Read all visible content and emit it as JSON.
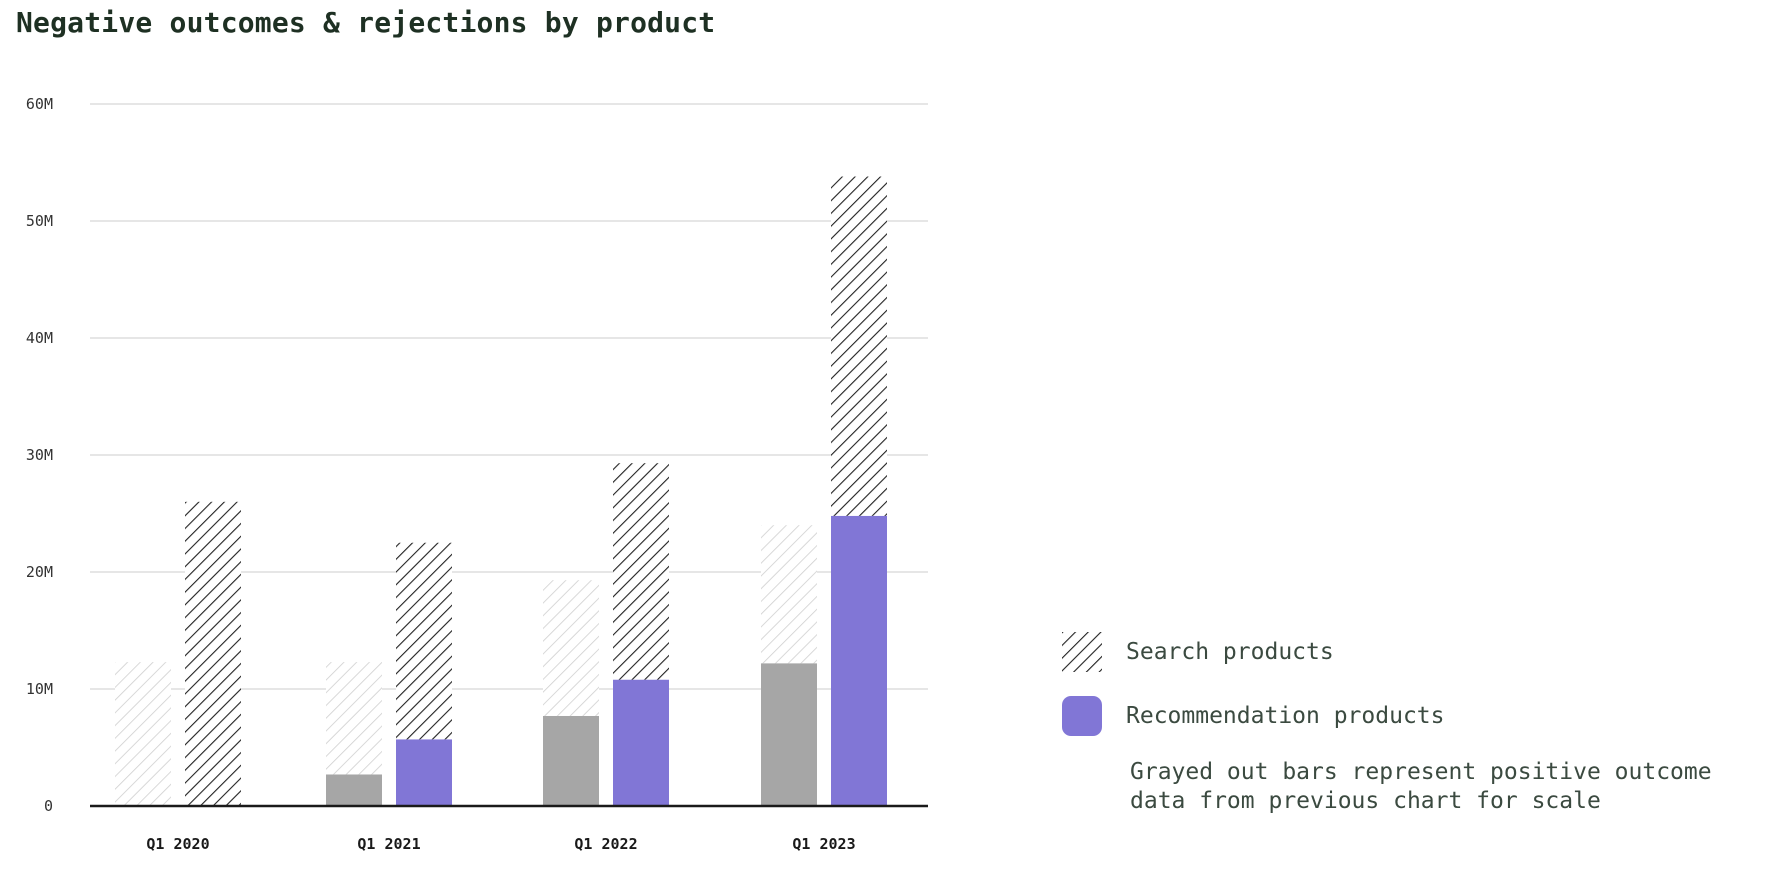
{
  "title": "Negative outcomes & rejections by product",
  "legend": {
    "search": "Search products",
    "recommendation": "Recommendation products",
    "note": "Grayed out bars represent positive outcome data from previous chart for scale"
  },
  "colors": {
    "recommendation": "#8176d6",
    "grayed": "#a6a6a6",
    "hatch": "#222222",
    "hatch_faded": "#cfcfcf",
    "grid": "#cccccc",
    "axis": "#1a1a1a"
  },
  "chart_data": {
    "type": "bar",
    "stacked": true,
    "categories": [
      "Q1 2020",
      "Q1 2021",
      "Q1 2022",
      "Q1 2023"
    ],
    "yticks": [
      "0",
      "10M",
      "20M",
      "30M",
      "40M",
      "50M",
      "60M"
    ],
    "ylim": [
      0,
      60000000
    ],
    "grid": true,
    "legend_position": "right",
    "series": [
      {
        "name": "Search products",
        "group": "negative",
        "style": "hatched",
        "values": [
          26000000,
          16800000,
          18500000,
          29000000
        ]
      },
      {
        "name": "Recommendation products",
        "group": "negative",
        "style": "solid",
        "values": [
          0,
          5700000,
          10800000,
          24800000
        ]
      },
      {
        "group": "positive (grayed)",
        "style": "hatched-faded",
        "values": [
          12300000,
          9600000,
          11600000,
          11800000
        ]
      },
      {
        "group": "positive (grayed)",
        "style": "solid-gray",
        "values": [
          0,
          2700000,
          7700000,
          12200000
        ]
      }
    ]
  }
}
